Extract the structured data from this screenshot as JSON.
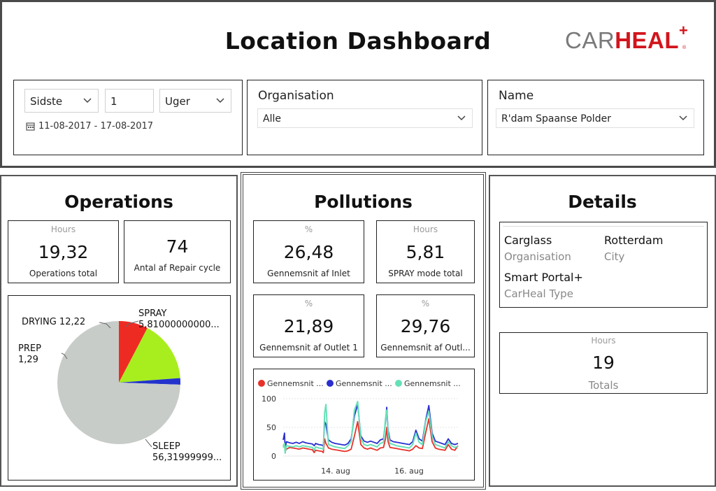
{
  "header": {
    "title": "Location Dashboard",
    "logo_text_gray": "CAR",
    "logo_text_red": "HEAL",
    "logo_plus": "+",
    "logo_reg": "®"
  },
  "filters": {
    "period": {
      "mode": "Sidste",
      "count": "1",
      "unit": "Uger",
      "date_range": "11-08-2017 - 17-08-2017"
    },
    "organisation": {
      "title": "Organisation",
      "value": "Alle"
    },
    "name": {
      "title": "Name",
      "value": "R'dam Spaanse Polder"
    }
  },
  "operations": {
    "title": "Operations",
    "cards": [
      {
        "label": "Hours",
        "value": "19,32",
        "caption": "Operations total"
      },
      {
        "label": "",
        "value": "74",
        "caption": "Antal af Repair cycle"
      }
    ],
    "pie_labels": {
      "spray": [
        "SPRAY",
        "5,81000000000..."
      ],
      "drying": [
        "DRYING 12,22"
      ],
      "prep": [
        "PREP",
        "1,29"
      ],
      "sleep": [
        "SLEEP",
        "56,31999999..."
      ]
    }
  },
  "pollutions": {
    "title": "Pollutions",
    "cards": [
      {
        "label": "%",
        "value": "26,48",
        "caption": "Gennemsnit af Inlet"
      },
      {
        "label": "Hours",
        "value": "5,81",
        "caption": "SPRAY mode total"
      },
      {
        "label": "%",
        "value": "21,89",
        "caption": "Gennemsnit af Outlet 1"
      },
      {
        "label": "%",
        "value": "29,76",
        "caption": "Gennemsnit af Outl..."
      }
    ],
    "legend": [
      "Gennemsnit ...",
      "Gennemsnit ...",
      "Gennemsnit ..."
    ]
  },
  "details": {
    "title": "Details",
    "organisation_value": "Carglass",
    "organisation_label": "Organisation",
    "city_value": "Rotterdam",
    "city_label": "City",
    "type_value": "Smart Portal+",
    "type_label": "CarHeal Type",
    "totals_label": "Hours",
    "totals_value": "19",
    "totals_caption": "Totals"
  },
  "colors": {
    "spray": "#ee2b23",
    "drying": "#a8ee1e",
    "prep": "#2233cc",
    "sleep": "#c8ccc9",
    "series_red": "#e8312a",
    "series_blue": "#2a2ed0",
    "series_teal": "#66e0b8"
  },
  "chart_data": [
    {
      "type": "pie",
      "title": "",
      "categories": [
        "SPRAY",
        "DRYING",
        "PREP",
        "SLEEP"
      ],
      "values": [
        5.81,
        12.22,
        1.29,
        56.32
      ]
    },
    {
      "type": "line",
      "title": "",
      "xlabel": "",
      "ylabel": "",
      "ylim": [
        0,
        100
      ],
      "y_ticks": [
        0,
        50,
        100
      ],
      "x_tick_labels": [
        "14. aug",
        "16. aug"
      ],
      "x": [
        0,
        2,
        3,
        5,
        10,
        15,
        20,
        25,
        30,
        35,
        40,
        45,
        48,
        50,
        55,
        60,
        62,
        64,
        66,
        68,
        70,
        75,
        80,
        85,
        90,
        95,
        100,
        105,
        110,
        115,
        120,
        125,
        130,
        135,
        140,
        145,
        150,
        155,
        158,
        160,
        162,
        165,
        170,
        175,
        180,
        185,
        190,
        195,
        200,
        205,
        210,
        215,
        220,
        225,
        230,
        235,
        240,
        245,
        250,
        255,
        260,
        265,
        270
      ],
      "series": [
        {
          "name": "",
          "values": [
            20,
            18,
            8,
            12,
            15,
            14,
            13,
            12,
            14,
            13,
            12,
            11,
            6,
            10,
            9,
            8,
            6,
            30,
            22,
            18,
            14,
            12,
            11,
            10,
            9,
            8,
            9,
            12,
            35,
            60,
            20,
            14,
            12,
            14,
            12,
            10,
            14,
            15,
            30,
            50,
            25,
            15,
            14,
            13,
            12,
            11,
            10,
            9,
            12,
            18,
            14,
            13,
            40,
            65,
            25,
            14,
            12,
            11,
            10,
            20,
            12,
            10,
            18
          ]
        },
        {
          "name": "",
          "values": [
            28,
            40,
            12,
            25,
            23,
            22,
            24,
            22,
            25,
            23,
            22,
            21,
            18,
            22,
            20,
            19,
            17,
            60,
            55,
            40,
            28,
            24,
            22,
            21,
            20,
            19,
            22,
            30,
            70,
            90,
            35,
            26,
            24,
            26,
            24,
            22,
            28,
            30,
            60,
            85,
            45,
            28,
            25,
            24,
            23,
            22,
            21,
            20,
            25,
            45,
            30,
            26,
            62,
            88,
            40,
            26,
            24,
            22,
            20,
            30,
            22,
            20,
            22
          ]
        },
        {
          "name": "",
          "values": [
            15,
            22,
            5,
            18,
            17,
            16,
            18,
            16,
            18,
            17,
            16,
            15,
            10,
            16,
            14,
            13,
            12,
            75,
            90,
            50,
            20,
            18,
            16,
            15,
            14,
            13,
            18,
            25,
            80,
            95,
            30,
            20,
            18,
            20,
            18,
            16,
            22,
            24,
            65,
            80,
            40,
            22,
            20,
            18,
            17,
            16,
            15,
            14,
            20,
            40,
            24,
            20,
            60,
            78,
            35,
            20,
            18,
            16,
            14,
            25,
            18,
            15,
            17
          ]
        }
      ]
    }
  ]
}
